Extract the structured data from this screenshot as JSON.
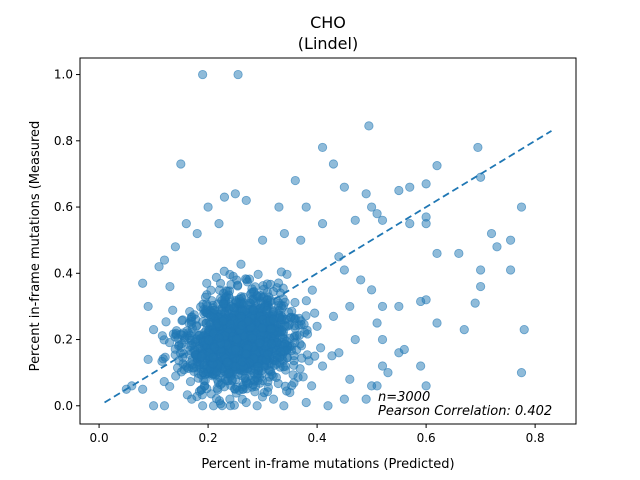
{
  "chart_data": {
    "type": "scatter",
    "title": "CHO",
    "subtitle": "(Lindel)",
    "xlabel": "Percent in-frame mutations (Predicted)",
    "ylabel": "Percent in-frame mutations (Measured",
    "xlim": [
      -0.035,
      0.875
    ],
    "ylim": [
      -0.055,
      1.05
    ],
    "xticks": [
      0.0,
      0.2,
      0.4,
      0.6,
      0.8
    ],
    "xtick_labels": [
      "0.0",
      "0.2",
      "0.4",
      "0.6",
      "0.8"
    ],
    "yticks": [
      0.0,
      0.2,
      0.4,
      0.6,
      0.8,
      1.0
    ],
    "ytick_labels": [
      "0.0",
      "0.2",
      "0.4",
      "0.6",
      "0.8",
      "1.0"
    ],
    "grid": false,
    "point_color": "#1f77b4",
    "point_alpha": 0.5,
    "trend_line": {
      "style": "dashed",
      "color": "#1f77b4",
      "x": [
        0.01,
        0.83
      ],
      "y": [
        0.01,
        0.83
      ]
    },
    "annotation": {
      "n": "n=3000",
      "pearson": "Pearson Correlation: 0.402"
    },
    "points": [
      [
        0.19,
        1.0
      ],
      [
        0.255,
        1.0
      ],
      [
        0.495,
        0.845
      ],
      [
        0.41,
        0.78
      ],
      [
        0.695,
        0.78
      ],
      [
        0.43,
        0.73
      ],
      [
        0.15,
        0.73
      ],
      [
        0.36,
        0.68
      ],
      [
        0.6,
        0.67
      ],
      [
        0.45,
        0.66
      ],
      [
        0.23,
        0.63
      ],
      [
        0.25,
        0.64
      ],
      [
        0.27,
        0.62
      ],
      [
        0.2,
        0.6
      ],
      [
        0.33,
        0.6
      ],
      [
        0.38,
        0.6
      ],
      [
        0.49,
        0.64
      ],
      [
        0.5,
        0.6
      ],
      [
        0.51,
        0.58
      ],
      [
        0.55,
        0.65
      ],
      [
        0.57,
        0.66
      ],
      [
        0.62,
        0.725
      ],
      [
        0.7,
        0.69
      ],
      [
        0.775,
        0.6
      ],
      [
        0.6,
        0.57
      ],
      [
        0.6,
        0.55
      ],
      [
        0.41,
        0.55
      ],
      [
        0.47,
        0.56
      ],
      [
        0.52,
        0.56
      ],
      [
        0.57,
        0.55
      ],
      [
        0.72,
        0.52
      ],
      [
        0.73,
        0.48
      ],
      [
        0.755,
        0.5
      ],
      [
        0.62,
        0.46
      ],
      [
        0.66,
        0.46
      ],
      [
        0.7,
        0.41
      ],
      [
        0.755,
        0.41
      ],
      [
        0.7,
        0.36
      ],
      [
        0.69,
        0.31
      ],
      [
        0.78,
        0.23
      ],
      [
        0.775,
        0.1
      ],
      [
        0.67,
        0.23
      ],
      [
        0.62,
        0.25
      ],
      [
        0.6,
        0.32
      ],
      [
        0.59,
        0.315
      ],
      [
        0.55,
        0.3
      ],
      [
        0.52,
        0.3
      ],
      [
        0.51,
        0.25
      ],
      [
        0.52,
        0.2
      ],
      [
        0.52,
        0.12
      ],
      [
        0.55,
        0.16
      ],
      [
        0.56,
        0.17
      ],
      [
        0.53,
        0.1
      ],
      [
        0.59,
        0.12
      ],
      [
        0.6,
        0.06
      ],
      [
        0.51,
        0.06
      ],
      [
        0.5,
        0.06
      ],
      [
        0.49,
        0.02
      ],
      [
        0.45,
        0.02
      ],
      [
        0.42,
        0.0
      ],
      [
        0.38,
        0.01
      ],
      [
        0.14,
        0.48
      ],
      [
        0.12,
        0.44
      ],
      [
        0.11,
        0.42
      ],
      [
        0.13,
        0.36
      ],
      [
        0.08,
        0.37
      ],
      [
        0.09,
        0.3
      ],
      [
        0.1,
        0.23
      ],
      [
        0.09,
        0.14
      ],
      [
        0.06,
        0.06
      ],
      [
        0.05,
        0.05
      ],
      [
        0.08,
        0.05
      ],
      [
        0.1,
        0.0
      ],
      [
        0.12,
        0.0
      ],
      [
        0.16,
        0.55
      ],
      [
        0.18,
        0.52
      ],
      [
        0.22,
        0.55
      ],
      [
        0.3,
        0.5
      ],
      [
        0.34,
        0.52
      ],
      [
        0.37,
        0.5
      ],
      [
        0.44,
        0.45
      ],
      [
        0.45,
        0.41
      ],
      [
        0.48,
        0.38
      ],
      [
        0.5,
        0.35
      ],
      [
        0.46,
        0.3
      ],
      [
        0.43,
        0.27
      ],
      [
        0.4,
        0.24
      ],
      [
        0.47,
        0.2
      ],
      [
        0.44,
        0.16
      ],
      [
        0.41,
        0.12
      ],
      [
        0.46,
        0.08
      ],
      [
        0.39,
        0.06
      ],
      [
        0.35,
        0.04
      ],
      [
        0.32,
        0.02
      ],
      [
        0.29,
        0.0
      ],
      [
        0.27,
        0.01
      ],
      [
        0.24,
        0.02
      ],
      [
        0.21,
        0.0
      ],
      [
        0.19,
        0.0
      ],
      [
        0.17,
        0.02
      ]
    ]
  }
}
